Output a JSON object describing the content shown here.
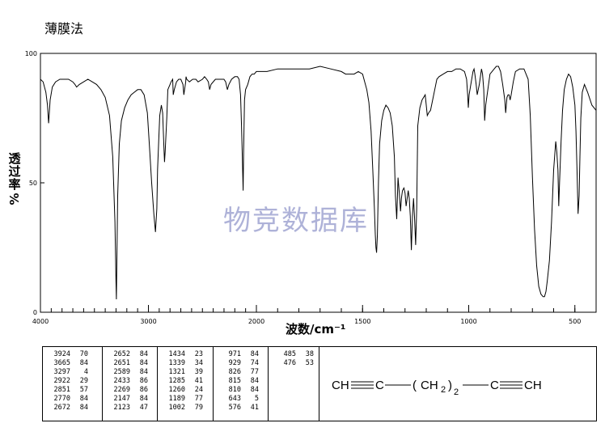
{
  "header": {
    "method": "薄膜法"
  },
  "watermark": "物竞数据库",
  "chart_data": {
    "type": "line",
    "xlabel": "波数/cm⁻¹",
    "ylabel_chars": [
      "透",
      "过",
      "率"
    ],
    "ylabel_unit": "%",
    "xlim": [
      4000,
      400
    ],
    "ylim": [
      0,
      100
    ],
    "x_ticks": [
      "4000",
      "3000",
      "2000",
      "1500",
      "1000",
      "500"
    ],
    "x_tick_values": [
      4000,
      3000,
      2000,
      1500,
      1000,
      500
    ],
    "y_ticks": [
      "0",
      "50",
      "100"
    ],
    "y_tick_values": [
      0,
      50,
      100
    ],
    "series": [
      {
        "x": [
          4000,
          3975,
          3950,
          3935,
          3924,
          3910,
          3890,
          3860,
          3820,
          3780,
          3740,
          3700,
          3680,
          3665,
          3640,
          3600,
          3560,
          3520,
          3480,
          3440,
          3400,
          3360,
          3330,
          3310,
          3300,
          3297,
          3292,
          3285,
          3270,
          3250,
          3220,
          3190,
          3160,
          3130,
          3100,
          3070,
          3040,
          3010,
          2990,
          2970,
          2950,
          2935,
          2922,
          2915,
          2905,
          2895,
          2880,
          2868,
          2858,
          2851,
          2845,
          2830,
          2820,
          2800,
          2790,
          2775,
          2770,
          2760,
          2740,
          2720,
          2700,
          2690,
          2680,
          2672,
          2665,
          2655,
          2652,
          2645,
          2620,
          2590,
          2560,
          2540,
          2500,
          2480,
          2460,
          2445,
          2433,
          2420,
          2380,
          2340,
          2300,
          2285,
          2269,
          2255,
          2230,
          2200,
          2175,
          2160,
          2147,
          2138,
          2130,
          2123,
          2118,
          2110,
          2100,
          2080,
          2060,
          2040,
          2020,
          2000,
          1950,
          1900,
          1850,
          1800,
          1750,
          1700,
          1650,
          1600,
          1580,
          1560,
          1540,
          1520,
          1500,
          1490,
          1480,
          1470,
          1460,
          1452,
          1444,
          1440,
          1437,
          1434,
          1430,
          1425,
          1420,
          1410,
          1400,
          1390,
          1380,
          1370,
          1360,
          1350,
          1345,
          1339,
          1333,
          1327,
          1321,
          1317,
          1312,
          1305,
          1300,
          1295,
          1290,
          1285,
          1280,
          1275,
          1270,
          1265,
          1260,
          1255,
          1250,
          1245,
          1240,
          1230,
          1220,
          1205,
          1195,
          1189,
          1180,
          1170,
          1160,
          1150,
          1140,
          1120,
          1100,
          1080,
          1060,
          1040,
          1020,
          1010,
          1005,
          1002,
          998,
          990,
          980,
          975,
          971,
          965,
          960,
          950,
          940,
          935,
          929,
          925,
          920,
          900,
          880,
          870,
          860,
          850,
          840,
          830,
          826,
          820,
          815,
          810,
          805,
          800,
          790,
          780,
          760,
          740,
          720,
          710,
          700,
          690,
          680,
          670,
          660,
          650,
          643,
          636,
          630,
          620,
          610,
          600,
          590,
          585,
          580,
          576,
          572,
          565,
          558,
          550,
          540,
          530,
          520,
          510,
          500,
          495,
          490,
          485,
          480,
          476,
          472,
          465,
          455,
          440,
          420,
          400
        ],
        "y": [
          90,
          89,
          85,
          80,
          73,
          82,
          87,
          89,
          90,
          90,
          90,
          89,
          88,
          87,
          88,
          89,
          90,
          89,
          88,
          86,
          83,
          76,
          60,
          35,
          12,
          5,
          20,
          45,
          65,
          74,
          79,
          82,
          84,
          85,
          86,
          86,
          84,
          77,
          64,
          50,
          38,
          31,
          40,
          55,
          66,
          76,
          80,
          77,
          65,
          58,
          62,
          75,
          86,
          88,
          89,
          90,
          84,
          86,
          89,
          90,
          90,
          89,
          88,
          84,
          86,
          89,
          91,
          90,
          89,
          90,
          90,
          89,
          90,
          91,
          90,
          89,
          86,
          88,
          90,
          90,
          90,
          89,
          86,
          88,
          90,
          91,
          91,
          90,
          84,
          72,
          60,
          47,
          62,
          82,
          86,
          88,
          91,
          92,
          92,
          93,
          93,
          94,
          94,
          94,
          94,
          95,
          94,
          93,
          92,
          92,
          92,
          93,
          92,
          89,
          86,
          81,
          70,
          55,
          40,
          30,
          25,
          23,
          30,
          50,
          65,
          74,
          78,
          80,
          79,
          77,
          72,
          60,
          45,
          36,
          52,
          46,
          39,
          44,
          47,
          48,
          46,
          41,
          44,
          47,
          44,
          37,
          24,
          37,
          44,
          36,
          26,
          40,
          72,
          79,
          82,
          84,
          76,
          77,
          78,
          82,
          86,
          90,
          91,
          92,
          93,
          93,
          94,
          94,
          93,
          90,
          84,
          79,
          84,
          88,
          93,
          94,
          92,
          88,
          84,
          88,
          94,
          92,
          86,
          74,
          80,
          92,
          94,
          95,
          95,
          93,
          88,
          82,
          77,
          83,
          84,
          84,
          82,
          84,
          89,
          93,
          94,
          94,
          90,
          76,
          52,
          32,
          18,
          10,
          7,
          6,
          6,
          8,
          12,
          20,
          35,
          55,
          66,
          62,
          55,
          41,
          50,
          66,
          78,
          86,
          90,
          92,
          91,
          87,
          80,
          70,
          55,
          38,
          45,
          60,
          75,
          85,
          88,
          85,
          80,
          78
        ]
      }
    ]
  },
  "peak_table": [
    [
      [
        "3924",
        "70"
      ],
      [
        "3665",
        "84"
      ],
      [
        "3297",
        "4"
      ],
      [
        "2922",
        "29"
      ],
      [
        "2851",
        "57"
      ],
      [
        "2770",
        "84"
      ],
      [
        "2672",
        "84"
      ]
    ],
    [
      [
        "2652",
        "84"
      ],
      [
        "2651",
        "84"
      ],
      [
        "2589",
        "84"
      ],
      [
        "2433",
        "86"
      ],
      [
        "2269",
        "86"
      ],
      [
        "2147",
        "84"
      ],
      [
        "2123",
        "47"
      ]
    ],
    [
      [
        "1434",
        "23"
      ],
      [
        "1339",
        "34"
      ],
      [
        "1321",
        "39"
      ],
      [
        "1285",
        "41"
      ],
      [
        "1260",
        "24"
      ],
      [
        "1189",
        "77"
      ],
      [
        "1002",
        "79"
      ]
    ],
    [
      [
        "971",
        "84"
      ],
      [
        "929",
        "74"
      ],
      [
        "826",
        "77"
      ],
      [
        "815",
        "84"
      ],
      [
        "810",
        "84"
      ],
      [
        "643",
        "5"
      ],
      [
        "576",
        "41"
      ]
    ],
    [
      [
        "485",
        "38"
      ],
      [
        "476",
        "53"
      ]
    ]
  ],
  "structure": {
    "left": "CH",
    "c1": "C",
    "ch2": "CH",
    "ch2_sub": "2",
    "n_sub": "2",
    "c2": "C",
    "right": "CH"
  }
}
